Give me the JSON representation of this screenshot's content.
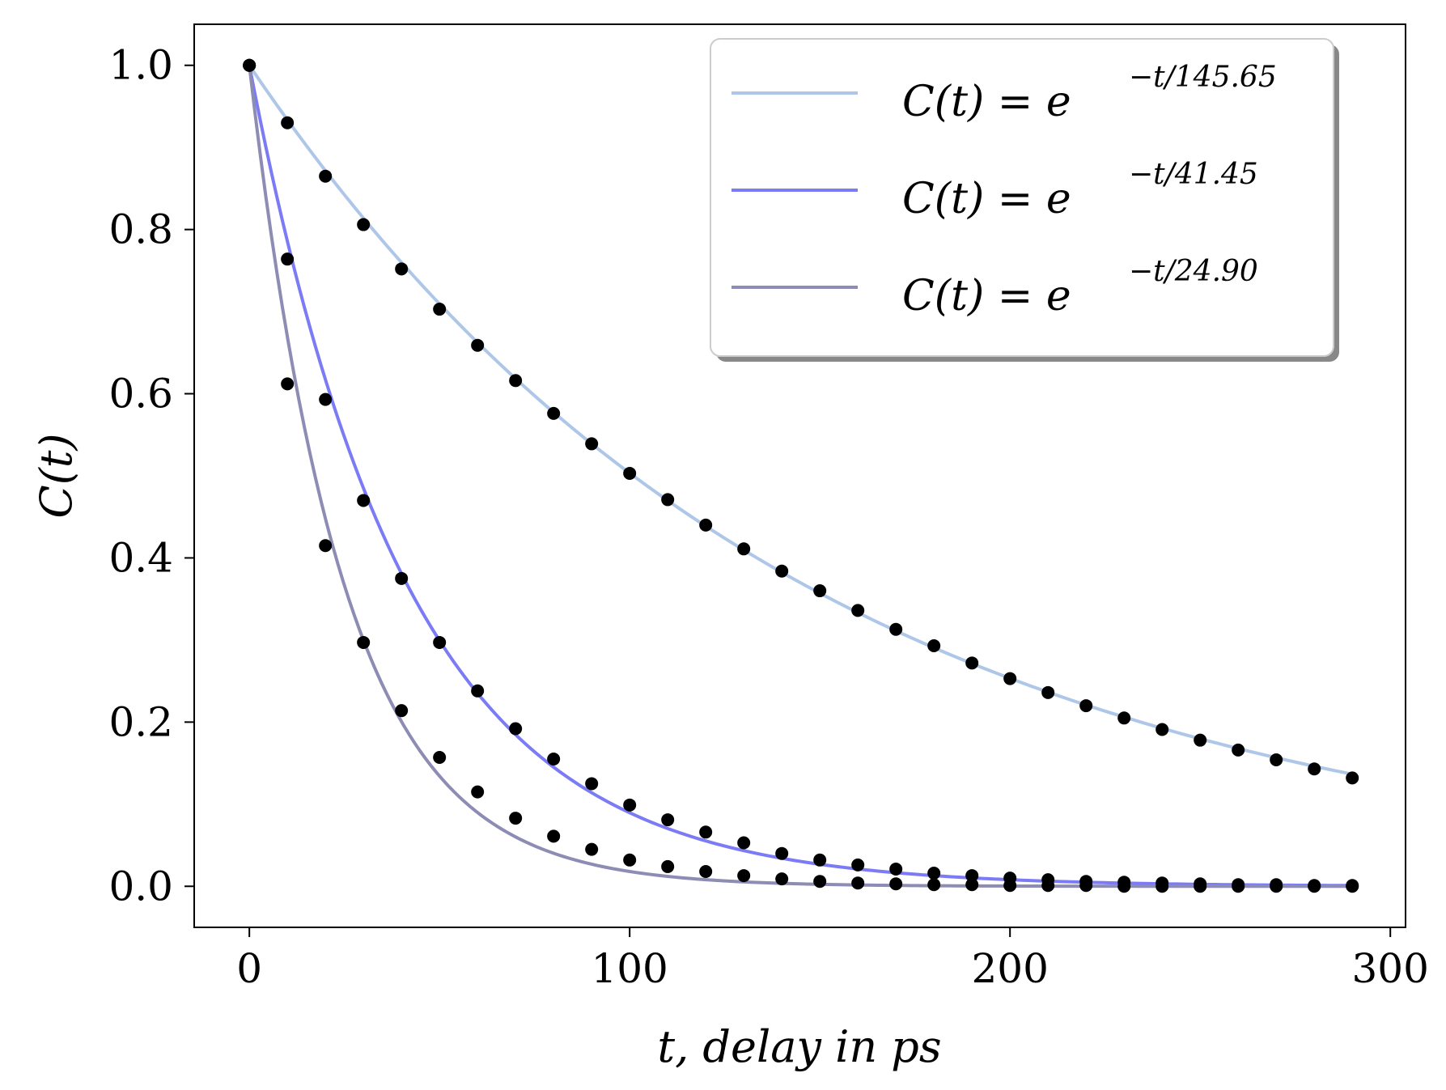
{
  "chart_data": {
    "type": "line",
    "title": "",
    "xlabel": "t, delay in ps",
    "ylabel": "C(t)",
    "xlim": [
      -14.5,
      304
    ],
    "ylim": [
      -0.05,
      1.05
    ],
    "xticks": [
      0,
      100,
      200,
      300
    ],
    "yticks": [
      0.0,
      0.2,
      0.4,
      0.6,
      0.8,
      1.0
    ],
    "xtick_labels": [
      "0",
      "100",
      "200",
      "300"
    ],
    "ytick_labels": [
      "0.0",
      "0.2",
      "0.4",
      "0.6",
      "0.8",
      "1.0"
    ],
    "grid": false,
    "legend_position": "top-right",
    "series": [
      {
        "name": "C(t) = e^{-t/145.65}",
        "legend_main": "C(t) = e",
        "legend_sup": "−t/145.65",
        "tau": 145.65,
        "color": "#aec7e8",
        "points_x": [
          0,
          10,
          20,
          30,
          40,
          50,
          60,
          70,
          80,
          90,
          100,
          110,
          120,
          130,
          140,
          150,
          160,
          170,
          180,
          190,
          200,
          210,
          220,
          230,
          240,
          250,
          260,
          270,
          280,
          290
        ],
        "points_y": [
          1.0,
          0.93,
          0.865,
          0.806,
          0.752,
          0.703,
          0.659,
          0.616,
          0.576,
          0.539,
          0.503,
          0.471,
          0.44,
          0.411,
          0.384,
          0.36,
          0.336,
          0.313,
          0.293,
          0.272,
          0.253,
          0.236,
          0.22,
          0.205,
          0.191,
          0.178,
          0.166,
          0.154,
          0.143,
          0.132
        ]
      },
      {
        "name": "C(t) = e^{-t/41.45}",
        "legend_main": "C(t) = e",
        "legend_sup": "−t/41.45",
        "tau": 41.45,
        "color": "#7b7bf5",
        "points_x": [
          0,
          10,
          20,
          30,
          40,
          50,
          60,
          70,
          80,
          90,
          100,
          110,
          120,
          130,
          140,
          150,
          160,
          170,
          180,
          190,
          200,
          210,
          220,
          230,
          240,
          250,
          260,
          270,
          280,
          290
        ],
        "points_y": [
          1.0,
          0.764,
          0.593,
          0.47,
          0.375,
          0.297,
          0.238,
          0.192,
          0.155,
          0.125,
          0.099,
          0.081,
          0.066,
          0.053,
          0.04,
          0.032,
          0.026,
          0.021,
          0.016,
          0.013,
          0.01,
          0.008,
          0.006,
          0.005,
          0.004,
          0.003,
          0.002,
          0.002,
          0.001,
          0.001
        ]
      },
      {
        "name": "C(t) = e^{-t/24.90}",
        "legend_main": "C(t) = e",
        "legend_sup": "−t/24.90",
        "tau": 24.9,
        "color": "#8c8cb4",
        "points_x": [
          0,
          10,
          20,
          30,
          40,
          50,
          60,
          70,
          80,
          90,
          100,
          110,
          120,
          130,
          140,
          150,
          160,
          170,
          180,
          190,
          200,
          210,
          220,
          230,
          240,
          250,
          260,
          270,
          280,
          290
        ],
        "points_y": [
          1.0,
          0.612,
          0.415,
          0.297,
          0.214,
          0.157,
          0.115,
          0.083,
          0.061,
          0.045,
          0.032,
          0.024,
          0.018,
          0.013,
          0.009,
          0.006,
          0.004,
          0.003,
          0.002,
          0.002,
          0.001,
          0.001,
          0.001,
          0.0,
          0.0,
          0.0,
          0.0,
          0.0,
          0.0,
          0.0
        ]
      }
    ]
  }
}
